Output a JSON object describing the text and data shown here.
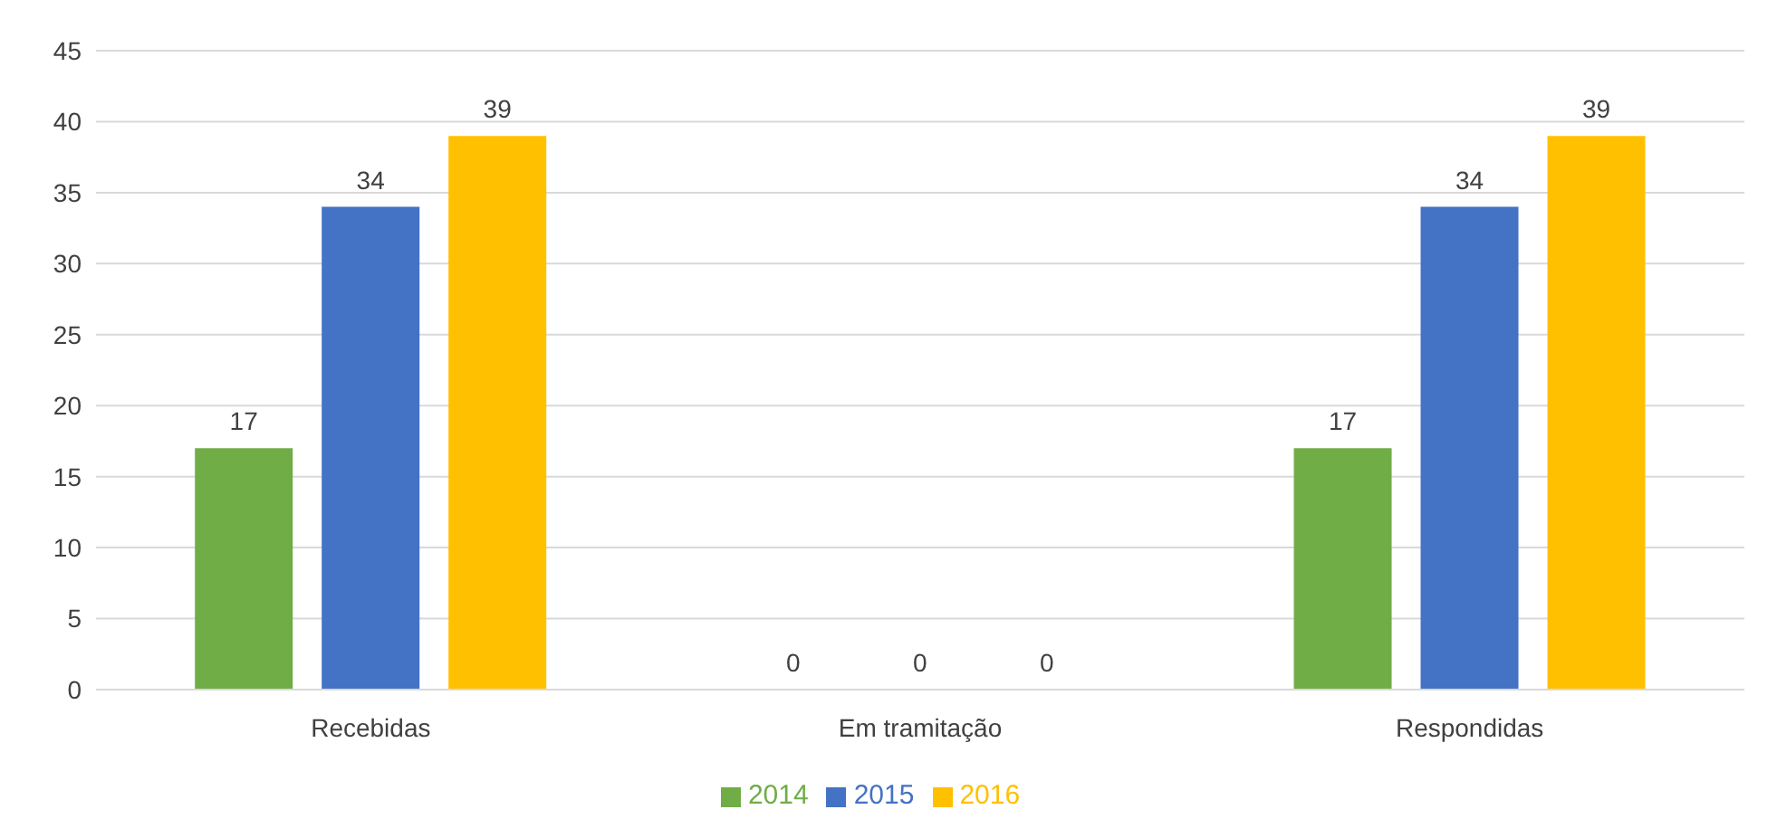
{
  "chart_data": {
    "type": "bar",
    "categories": [
      "Recebidas",
      "Em tramitação",
      "Respondidas"
    ],
    "series": [
      {
        "name": "2014",
        "color": "#70ad47",
        "values": [
          17,
          0,
          17
        ]
      },
      {
        "name": "2015",
        "color": "#4472c4",
        "values": [
          34,
          0,
          34
        ]
      },
      {
        "name": "2016",
        "color": "#ffc000",
        "values": [
          39,
          0,
          39
        ]
      }
    ],
    "ylim": [
      0,
      45
    ],
    "yticks": [
      0,
      5,
      10,
      15,
      20,
      25,
      30,
      35,
      40,
      45
    ],
    "grid": "y",
    "legend": "bottom",
    "data_labels": true
  }
}
